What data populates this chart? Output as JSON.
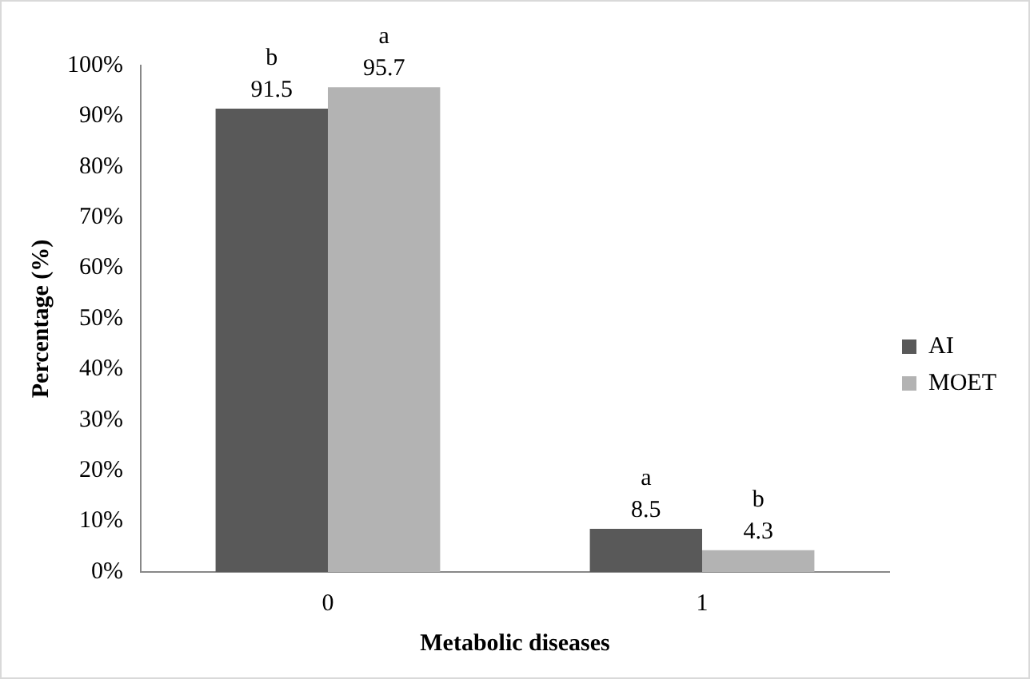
{
  "chart_data": {
    "type": "bar",
    "xlabel": "Metabolic diseases",
    "ylabel": "Percentage (%)",
    "categories": [
      "0",
      "1"
    ],
    "series": [
      {
        "name": "AI",
        "color": "#595959",
        "values": [
          91.5,
          8.5
        ]
      },
      {
        "name": "MOET",
        "color": "#b3b3b3",
        "values": [
          95.7,
          4.3
        ]
      }
    ],
    "ylim": [
      0,
      100
    ],
    "yticks": [
      {
        "value": 0,
        "label": "0%"
      },
      {
        "value": 10,
        "label": "10%"
      },
      {
        "value": 20,
        "label": "20%"
      },
      {
        "value": 30,
        "label": "30%"
      },
      {
        "value": 40,
        "label": "40%"
      },
      {
        "value": 50,
        "label": "50%"
      },
      {
        "value": 60,
        "label": "60%"
      },
      {
        "value": 70,
        "label": "70%"
      },
      {
        "value": 80,
        "label": "80%"
      },
      {
        "value": 90,
        "label": "90%"
      },
      {
        "value": 100,
        "label": "100%"
      }
    ],
    "data_labels": true,
    "annotations": [
      {
        "text": "b",
        "x": "0",
        "y": 91.5
      },
      {
        "text": "a",
        "x": "0",
        "y": 95.7
      },
      {
        "text": "a",
        "x": "1",
        "y": 8.5
      },
      {
        "text": "b",
        "x": "1",
        "y": 4.3
      }
    ],
    "grid": false,
    "legend": "right"
  }
}
